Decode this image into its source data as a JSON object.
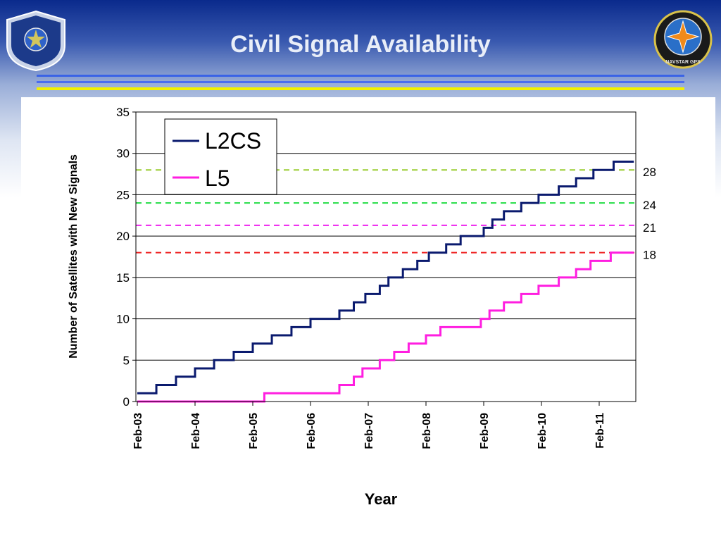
{
  "slide": {
    "title": "Civil Signal Availability",
    "logo_left": "air-force-program-executive-office-emblem",
    "logo_right": "navstar-gps-emblem",
    "logo_right_text": "NAVSTAR GPS",
    "stripe_colors": [
      "#3a63e6",
      "#4a6cf0",
      "#f2f000"
    ]
  },
  "chart_data": {
    "type": "line",
    "xlabel": "Year",
    "ylabel": "Number of Satellites with New Signals",
    "x_ticks": [
      "Feb-03",
      "Feb-04",
      "Feb-05",
      "Feb-06",
      "Feb-07",
      "Feb-08",
      "Feb-09",
      "Feb-10",
      "Feb-11"
    ],
    "xlim": [
      0,
      8.65
    ],
    "ylim": [
      0,
      35
    ],
    "y_ticks": [
      0,
      5,
      10,
      15,
      20,
      25,
      30,
      35
    ],
    "grid": "horizontal",
    "legend_position": "top-left",
    "series": [
      {
        "name": "L2CS",
        "color": "#0a1a6e",
        "step": true,
        "points": [
          [
            0.0,
            1
          ],
          [
            0.33,
            2
          ],
          [
            0.67,
            3
          ],
          [
            1.0,
            4
          ],
          [
            1.33,
            5
          ],
          [
            1.67,
            6
          ],
          [
            2.0,
            7
          ],
          [
            2.33,
            8
          ],
          [
            2.67,
            9
          ],
          [
            3.0,
            10
          ],
          [
            3.5,
            11
          ],
          [
            3.75,
            12
          ],
          [
            3.95,
            13
          ],
          [
            4.2,
            14
          ],
          [
            4.35,
            15
          ],
          [
            4.6,
            16
          ],
          [
            4.85,
            17
          ],
          [
            5.05,
            18
          ],
          [
            5.35,
            19
          ],
          [
            5.6,
            20
          ],
          [
            6.0,
            21
          ],
          [
            6.15,
            22
          ],
          [
            6.35,
            23
          ],
          [
            6.65,
            24
          ],
          [
            6.95,
            25
          ],
          [
            7.3,
            26
          ],
          [
            7.6,
            27
          ],
          [
            7.9,
            28
          ],
          [
            8.25,
            29
          ],
          [
            8.6,
            29
          ]
        ]
      },
      {
        "name": "L5",
        "color": "#ff1ee0",
        "step": true,
        "points": [
          [
            0.0,
            0
          ],
          [
            2.2,
            1
          ],
          [
            3.5,
            2
          ],
          [
            3.75,
            3
          ],
          [
            3.9,
            4
          ],
          [
            4.2,
            5
          ],
          [
            4.45,
            6
          ],
          [
            4.7,
            7
          ],
          [
            5.0,
            8
          ],
          [
            5.25,
            9
          ],
          [
            5.95,
            10
          ],
          [
            6.1,
            11
          ],
          [
            6.35,
            12
          ],
          [
            6.65,
            13
          ],
          [
            6.95,
            14
          ],
          [
            7.3,
            15
          ],
          [
            7.6,
            16
          ],
          [
            7.85,
            17
          ],
          [
            8.2,
            18
          ],
          [
            8.6,
            18
          ]
        ]
      }
    ],
    "reference_lines": [
      {
        "value": 28,
        "label": "28",
        "color": "#9acd32"
      },
      {
        "value": 24,
        "label": "24",
        "color": "#22dd44"
      },
      {
        "value": 21.3,
        "label": "21",
        "color": "#ee22ee"
      },
      {
        "value": 18,
        "label": "18",
        "color": "#ee2222"
      }
    ]
  }
}
